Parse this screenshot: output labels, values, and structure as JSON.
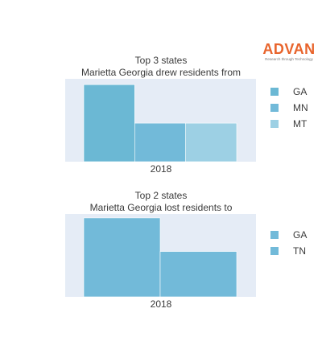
{
  "logo": {
    "name": "ADVAN",
    "tagline": "Research through Technology"
  },
  "chart_data": [
    {
      "type": "bar",
      "title_lines": [
        "Top 3 states",
        "Marietta Georgia drew residents from"
      ],
      "categories": [
        "2018"
      ],
      "series": [
        {
          "name": "GA",
          "values": [
            8
          ],
          "color": "#6bb8d4"
        },
        {
          "name": "MN",
          "values": [
            4
          ],
          "color": "#72bad9"
        },
        {
          "name": "MT",
          "values": [
            4
          ],
          "color": "#9dd0e4"
        }
      ],
      "ylim": [
        0,
        8.6
      ],
      "legend": "right",
      "grid": false
    },
    {
      "type": "bar",
      "title_lines": [
        "Top 2 states",
        "Marietta Georgia lost residents to"
      ],
      "categories": [
        "2018"
      ],
      "series": [
        {
          "name": "GA",
          "values": [
            8
          ],
          "color": "#72bad9"
        },
        {
          "name": "TN",
          "values": [
            4.6
          ],
          "color": "#72bad9"
        }
      ],
      "ylim": [
        0,
        8.4
      ],
      "legend": "right",
      "grid": false
    }
  ]
}
